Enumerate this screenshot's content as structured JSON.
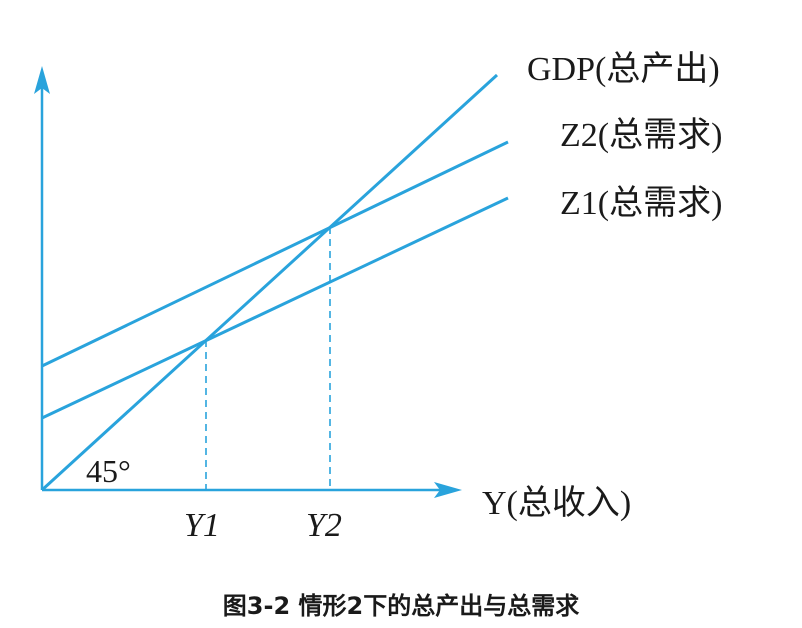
{
  "diagram": {
    "lines": [
      {
        "id": "gdp",
        "label": "GDP(总产出)"
      },
      {
        "id": "z2",
        "label": "Z2(总需求)"
      },
      {
        "id": "z1",
        "label": "Z1(总需求)"
      }
    ],
    "x_axis_label": "Y(总收入)",
    "ticks": [
      "Y1",
      "Y2"
    ],
    "angle_label": "45°",
    "caption": "图3-2 情形2下的总产出与总需求"
  }
}
